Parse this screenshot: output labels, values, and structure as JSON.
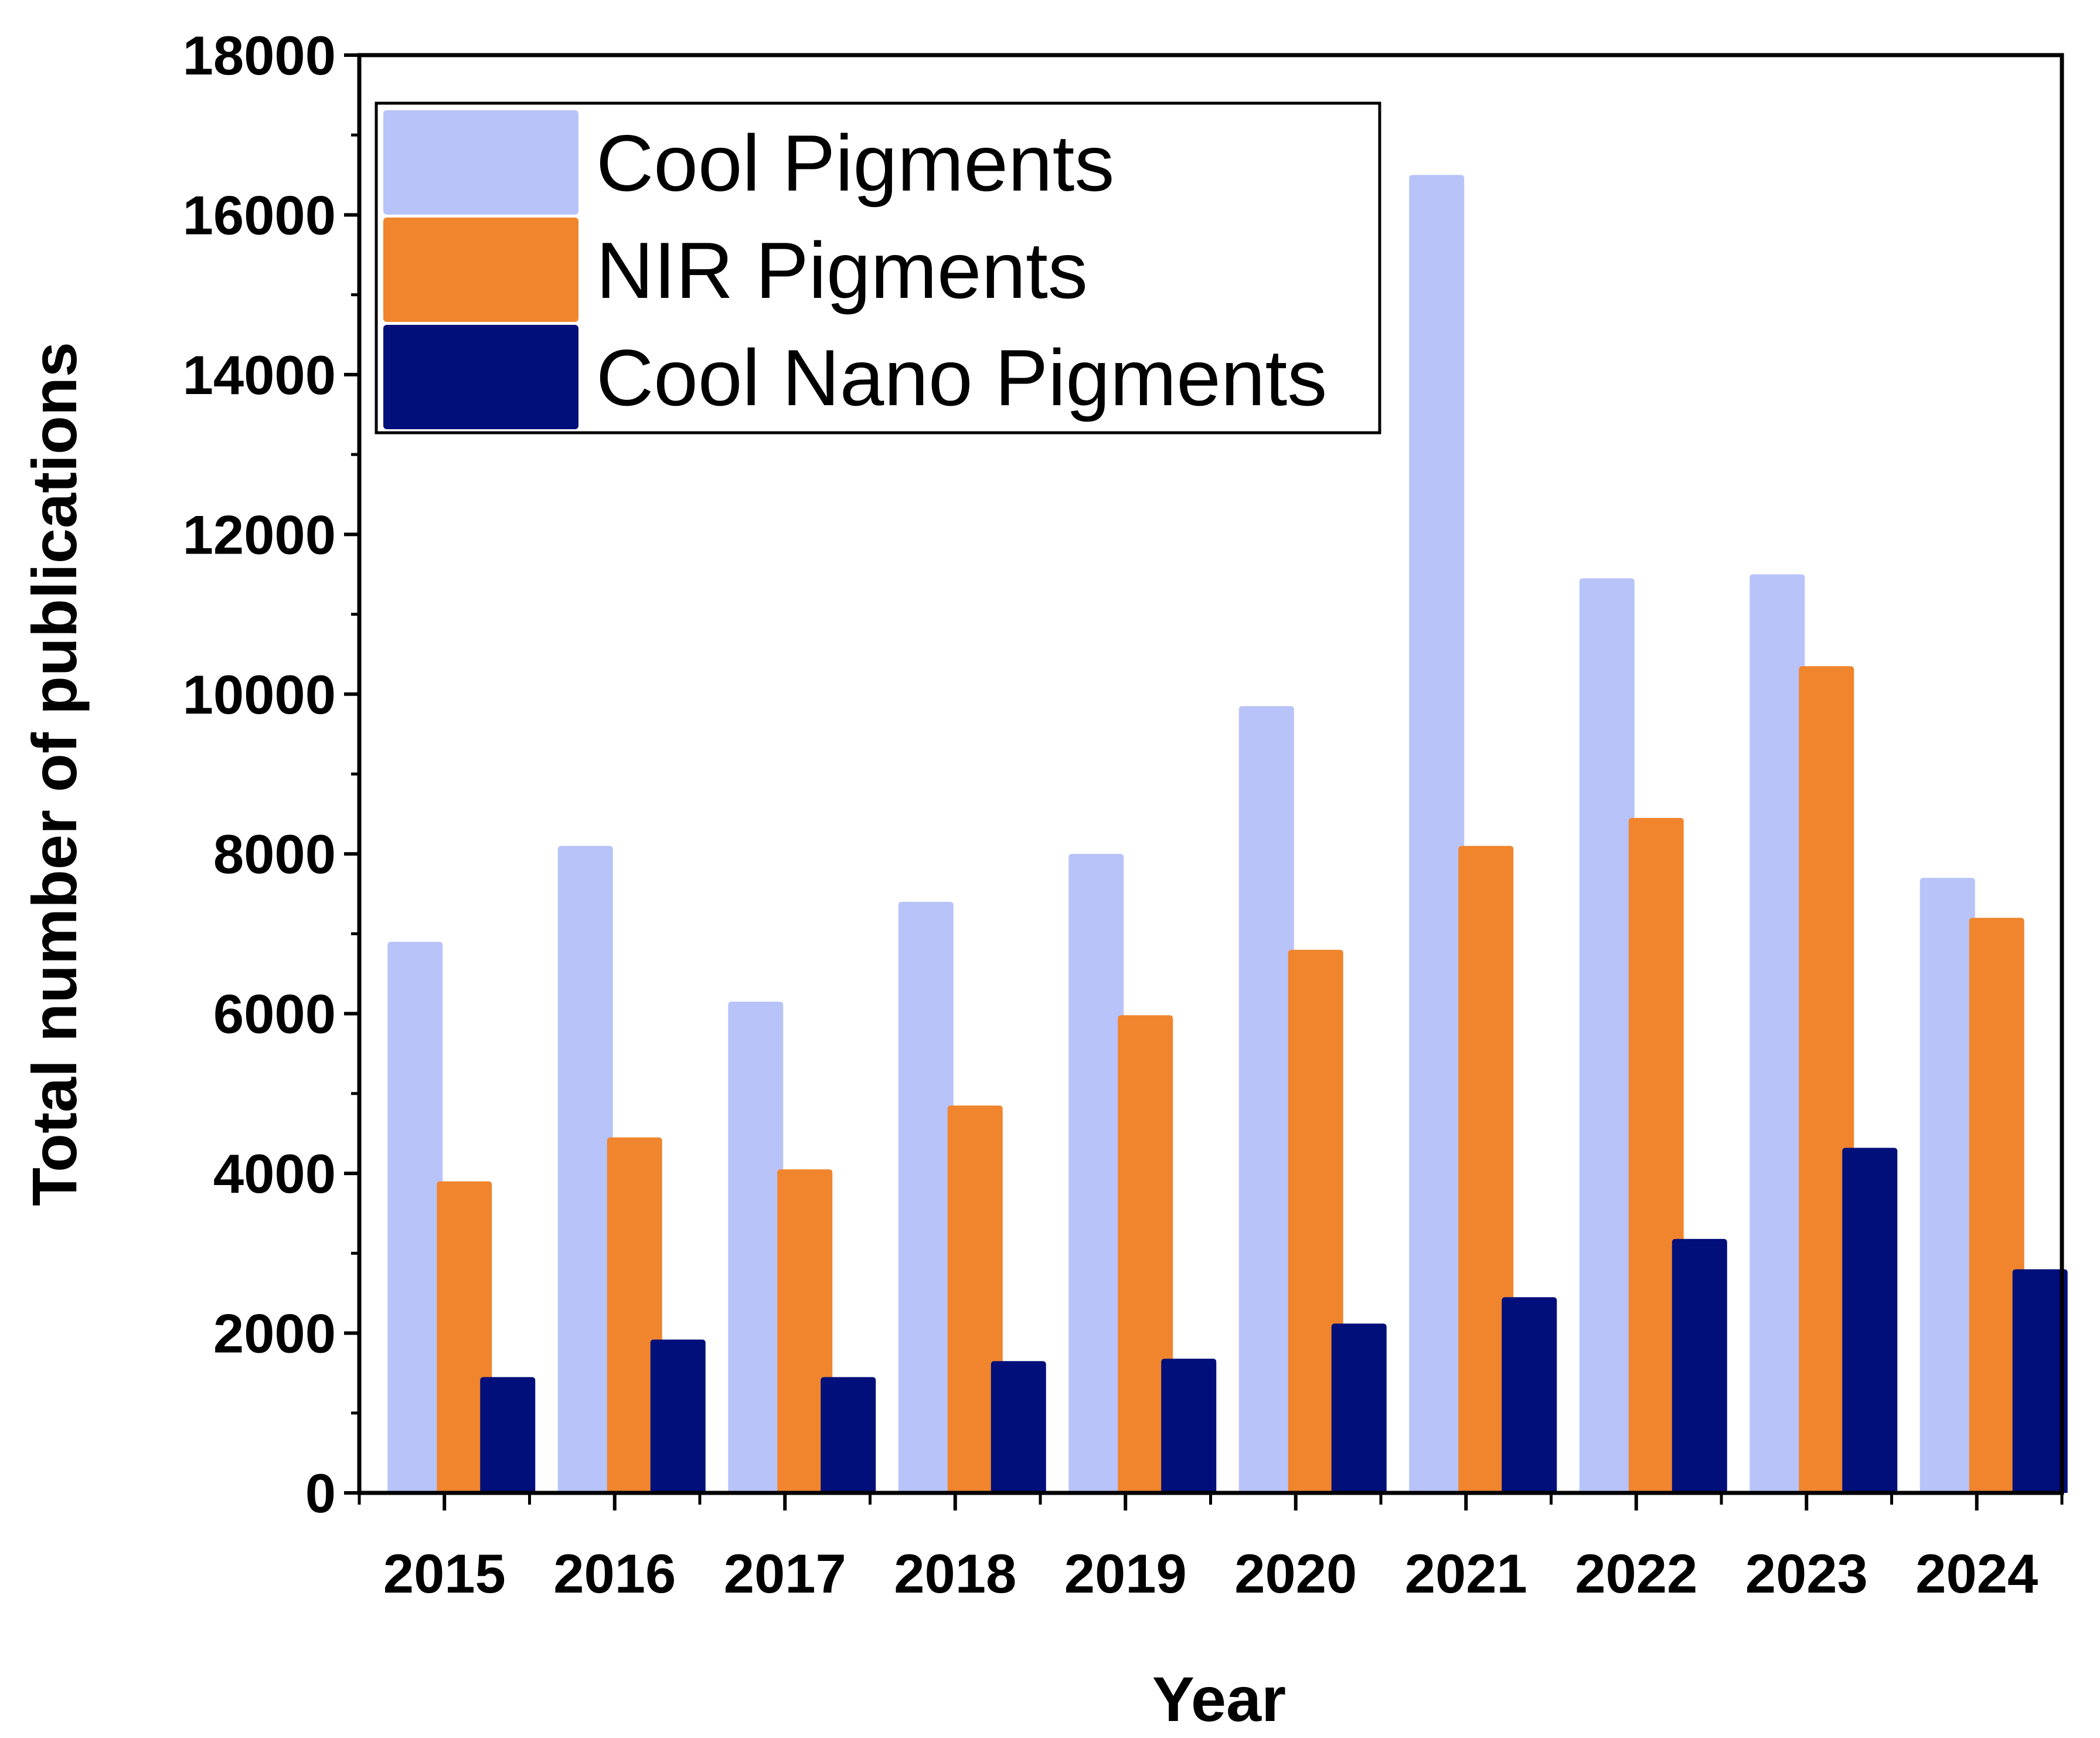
{
  "chart_data": {
    "type": "bar",
    "title": "",
    "xlabel": "Year",
    "ylabel": "Total number of publications",
    "ylim": [
      0,
      18000
    ],
    "yticks": [
      0,
      2000,
      4000,
      6000,
      8000,
      10000,
      12000,
      14000,
      16000,
      18000
    ],
    "categories": [
      "2015",
      "2016",
      "2017",
      "2018",
      "2019",
      "2020",
      "2021",
      "2022",
      "2023",
      "2024"
    ],
    "series": [
      {
        "name": "Cool Pigments",
        "color": "#b8c3fa",
        "values": [
          6900,
          8100,
          6150,
          7400,
          8000,
          9850,
          16500,
          11450,
          11500,
          7700
        ]
      },
      {
        "name": "NIR Pigments",
        "color": "#f0852d",
        "values": [
          3900,
          4450,
          4050,
          4850,
          5980,
          6800,
          8100,
          8450,
          10350,
          7200
        ]
      },
      {
        "name": "Cool Nano Pigments",
        "color": "#000f7a",
        "values": [
          1450,
          1920,
          1450,
          1650,
          1680,
          2120,
          2450,
          3180,
          4320,
          2800
        ]
      }
    ],
    "legend": {
      "position": "top-left"
    },
    "grid": false
  }
}
